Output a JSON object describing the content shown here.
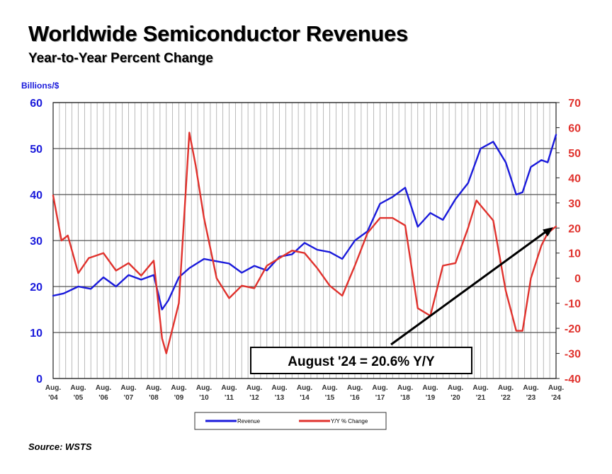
{
  "title": "Worldwide Semiconductor Revenues",
  "subtitle": "Year-to-Year Percent Change",
  "source": "Source: WSTS",
  "chart_data": {
    "type": "line",
    "left_axis": {
      "label": "Billions/$",
      "ylim": [
        0,
        60
      ],
      "ticks": [
        "0",
        "10",
        "20",
        "30",
        "40",
        "50",
        "60"
      ],
      "color": "#1a1adb"
    },
    "right_axis": {
      "ylim": [
        -40,
        70
      ],
      "ticks": [
        "-40",
        "-30",
        "-20",
        "-10",
        "0",
        "10",
        "20",
        "30",
        "40",
        "50",
        "60",
        "70"
      ],
      "color": "#e0322d"
    },
    "x_ticks": [
      [
        "Aug.",
        "'04"
      ],
      [
        "Aug.",
        "'05"
      ],
      [
        "Aug.",
        "'06"
      ],
      [
        "Aug.",
        "'07"
      ],
      [
        "Aug.",
        "'08"
      ],
      [
        "Aug.",
        "'09"
      ],
      [
        "Aug.",
        "'10"
      ],
      [
        "Aug.",
        "'11"
      ],
      [
        "Aug.",
        "'12"
      ],
      [
        "Aug.",
        "'13"
      ],
      [
        "Aug.",
        "'14"
      ],
      [
        "Aug.",
        "'15"
      ],
      [
        "Aug.",
        "'16"
      ],
      [
        "Aug.",
        "'17"
      ],
      [
        "Aug.",
        "'18"
      ],
      [
        "Aug.",
        "'19"
      ],
      [
        "Aug.",
        "'20"
      ],
      [
        "Aug.",
        "'21"
      ],
      [
        "Aug.",
        "'22"
      ],
      [
        "Aug.",
        "'23"
      ],
      [
        "Aug.",
        "'24"
      ]
    ],
    "grid": true,
    "legend_position": "bottom",
    "series": [
      {
        "name": "Revenue",
        "axis": "left",
        "color": "#1a1adb",
        "x": [
          "2004-08",
          "2005-01",
          "2005-08",
          "2006-02",
          "2006-08",
          "2007-02",
          "2007-08",
          "2008-02",
          "2008-08",
          "2008-12",
          "2009-03",
          "2009-08",
          "2010-01",
          "2010-08",
          "2011-02",
          "2011-08",
          "2012-02",
          "2012-08",
          "2013-02",
          "2013-08",
          "2014-02",
          "2014-08",
          "2015-02",
          "2015-08",
          "2016-02",
          "2016-08",
          "2017-02",
          "2017-08",
          "2018-02",
          "2018-08",
          "2019-02",
          "2019-08",
          "2020-02",
          "2020-08",
          "2021-02",
          "2021-08",
          "2022-02",
          "2022-08",
          "2023-01",
          "2023-04",
          "2023-08",
          "2024-01",
          "2024-04",
          "2024-08"
        ],
        "values": [
          18.0,
          18.5,
          20.0,
          19.5,
          22.0,
          20.0,
          22.5,
          21.5,
          22.5,
          15.0,
          17.0,
          22.0,
          24.0,
          26.0,
          25.5,
          25.0,
          23.0,
          24.5,
          23.5,
          26.5,
          27.0,
          29.5,
          28.0,
          27.5,
          26.0,
          30.0,
          32.0,
          38.0,
          39.5,
          41.5,
          33.0,
          36.0,
          34.5,
          39.0,
          42.5,
          50.0,
          51.5,
          47.0,
          40.0,
          40.5,
          46.0,
          47.5,
          47.0,
          53.0
        ]
      },
      {
        "name": "Y/Y % Change",
        "axis": "right",
        "color": "#e0322d",
        "x": [
          "2004-08",
          "2004-12",
          "2005-03",
          "2005-08",
          "2006-01",
          "2006-08",
          "2007-02",
          "2007-08",
          "2008-02",
          "2008-08",
          "2008-12",
          "2009-02",
          "2009-08",
          "2010-01",
          "2010-04",
          "2010-08",
          "2011-02",
          "2011-08",
          "2012-02",
          "2012-08",
          "2013-02",
          "2013-08",
          "2014-02",
          "2014-08",
          "2015-02",
          "2015-08",
          "2016-02",
          "2016-08",
          "2017-02",
          "2017-08",
          "2018-02",
          "2018-08",
          "2019-02",
          "2019-08",
          "2020-02",
          "2020-08",
          "2021-02",
          "2021-06",
          "2021-08",
          "2022-02",
          "2022-08",
          "2023-01",
          "2023-04",
          "2023-08",
          "2024-01",
          "2024-04",
          "2024-08"
        ],
        "values": [
          33,
          15,
          17,
          2,
          8,
          10,
          3,
          6,
          1,
          7,
          -24,
          -30,
          -10,
          58,
          45,
          24,
          0,
          -8,
          -3,
          -4,
          5,
          8,
          11,
          10,
          4,
          -3,
          -7,
          5,
          18,
          24,
          24,
          21,
          -12,
          -15,
          5,
          6,
          20,
          31,
          29,
          23,
          -5,
          -21,
          -21,
          0,
          13,
          18,
          20.6
        ]
      }
    ],
    "annotation": {
      "text": "August '24 = 20.6% Y/Y",
      "points_to": [
        "2024-08",
        20.6
      ]
    },
    "legend": [
      "Revenue",
      "Y/Y % Change"
    ]
  }
}
